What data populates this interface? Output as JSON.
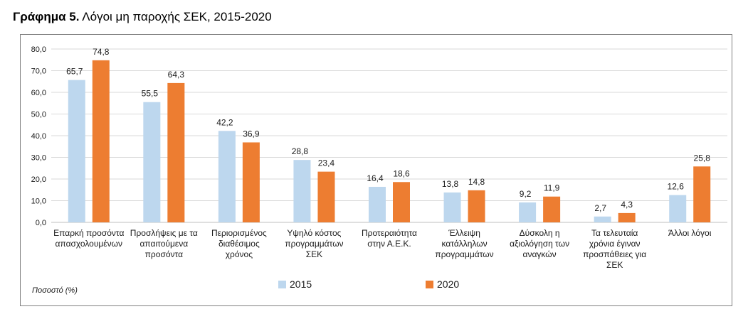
{
  "title": {
    "bold": "Γράφημα 5.",
    "rest": " Λόγοι μη παροχής ΣΕΚ, 2015-2020"
  },
  "unit_label": "Ποσοστό (%)",
  "colors": {
    "s2015": "#bdd7ee",
    "s2020": "#ed7d31",
    "grid": "#d9d9d9",
    "axis": "#bfbfbf"
  },
  "chart_data": {
    "type": "bar",
    "title": "Λόγοι μη παροχής ΣΕΚ, 2015-2020",
    "ylabel": "Ποσοστό (%)",
    "ylim": [
      0,
      80
    ],
    "yticks": [
      "0,0",
      "10,0",
      "20,0",
      "30,0",
      "40,0",
      "50,0",
      "60,0",
      "70,0",
      "80,0"
    ],
    "grid": true,
    "legend_position": "bottom",
    "categories": [
      [
        "Επαρκή προσόντα",
        "απασχολουμένων"
      ],
      [
        "Προσλήψεις με τα",
        "απαιτούμενα",
        "προσόντα"
      ],
      [
        "Περιορισμένος",
        "διαθέσιμος",
        "χρόνος"
      ],
      [
        "Υψηλό κόστος",
        "προγραμμάτων",
        "ΣΕΚ"
      ],
      [
        "Προτεραιότητα",
        "στην Α.Ε.Κ."
      ],
      [
        "Έλλειψη",
        "κατάλληλων",
        "προγραμμάτων"
      ],
      [
        "Δύσκολη η",
        "αξιολόγηση των",
        "αναγκών"
      ],
      [
        "Τα τελευταία",
        "χρόνια έγιναν",
        "προσπάθειες για",
        "ΣΕΚ"
      ],
      [
        "Άλλοι λόγοι"
      ]
    ],
    "series": [
      {
        "name": "2015",
        "values": [
          65.7,
          55.5,
          42.2,
          28.8,
          16.4,
          13.8,
          9.2,
          2.7,
          12.6
        ],
        "labels": [
          "65,7",
          "55,5",
          "42,2",
          "28,8",
          "16,4",
          "13,8",
          "9,2",
          "2,7",
          "12,6"
        ]
      },
      {
        "name": "2020",
        "values": [
          74.8,
          64.3,
          36.9,
          23.4,
          18.6,
          14.8,
          11.9,
          4.3,
          25.8
        ],
        "labels": [
          "74,8",
          "64,3",
          "36,9",
          "23,4",
          "18,6",
          "14,8",
          "11,9",
          "4,3",
          "25,8"
        ]
      }
    ]
  }
}
